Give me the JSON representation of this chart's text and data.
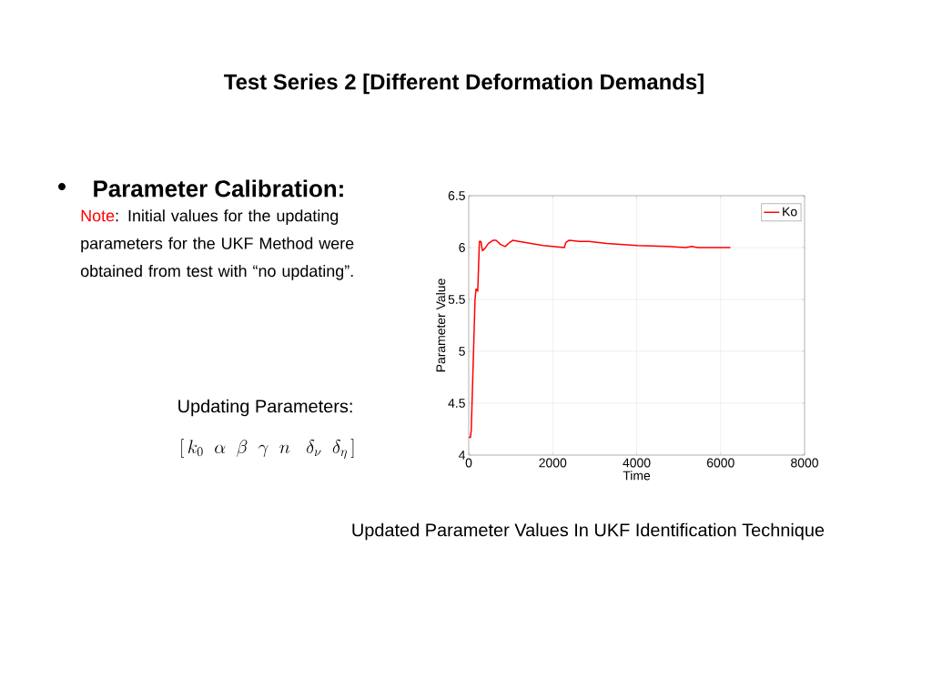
{
  "chart_data": {
    "type": "line",
    "title": "Test Series 2 [Different Deformation Demands]",
    "xlabel": "Time",
    "ylabel": "Parameter Value",
    "annotations": [
      "Parameter Calibration:",
      "Note",
      ": Initial values for the updating parameters for the UKF Method were obtained from test with “no updating”.",
      "Updating Parameters:",
      "[\\,k_0\\;\\;\\alpha\\;\\;\\beta\\;\\;\\gamma\\;\\;n\\;\\;\\;\\delta_\\nu\\;\\;\\delta_\\eta\\,]",
      "Updated Parameter Values In UKF Identification Technique"
    ],
    "x": [
      0,
      40,
      60,
      150,
      175,
      215,
      254,
      290,
      325,
      384,
      470,
      578,
      650,
      760,
      868,
      976,
      1048,
      1193,
      1482,
      1771,
      2000,
      2278,
      2314,
      2386,
      2639,
      2856,
      3290,
      4012,
      4735,
      5169,
      5314,
      5459,
      6232
    ],
    "series": [
      {
        "name": "Ko",
        "color": "#ff0000",
        "values": [
          4.17,
          4.17,
          4.24,
          5.5,
          5.6,
          5.58,
          6.06,
          6.06,
          5.97,
          5.99,
          6.04,
          6.07,
          6.07,
          6.03,
          6.01,
          6.05,
          6.07,
          6.06,
          6.04,
          6.02,
          6.01,
          6.0,
          6.05,
          6.07,
          6.06,
          6.06,
          6.04,
          6.02,
          6.01,
          6.0,
          6.01,
          6.0,
          6.0
        ]
      }
    ],
    "xlim": [
      0,
      8000
    ],
    "ylim": [
      4,
      6.5
    ],
    "xticks": [
      0,
      2000,
      4000,
      6000,
      8000
    ],
    "yticks": [
      4,
      4.5,
      5,
      5.5,
      6,
      6.5
    ],
    "grid": true,
    "legend": "top right",
    "marker": "none",
    "line_style": "solid"
  }
}
